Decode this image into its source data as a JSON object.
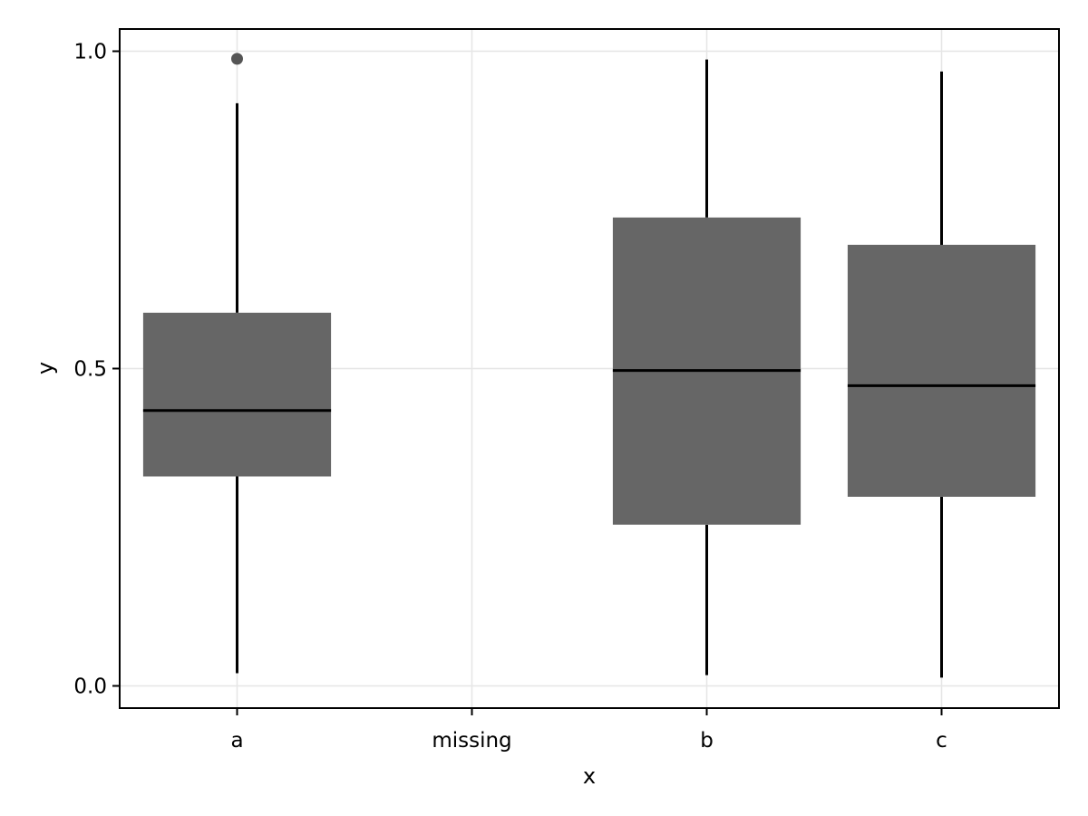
{
  "chart_data": {
    "type": "boxplot",
    "title": "",
    "xlabel": "x",
    "ylabel": "y",
    "categories": [
      "a",
      "missing",
      "b",
      "c"
    ],
    "ylim": [
      -0.035,
      1.035
    ],
    "yticks": [
      0.0,
      0.5,
      1.0
    ],
    "ytick_labels": [
      "0.0",
      "0.5",
      "1.0"
    ],
    "grid": true,
    "legend": "none",
    "box_color": "#666666",
    "median_color": "#000000",
    "whisker_color": "#000000",
    "outlier_color": "#555555",
    "grid_color": "#e6e6e6",
    "boxes": [
      {
        "category": "a",
        "whisker_low": 0.02,
        "q1": 0.33,
        "median": 0.434,
        "q3": 0.588,
        "whisker_high": 0.918,
        "outliers": [
          0.988
        ]
      },
      {
        "category": "missing",
        "empty": true
      },
      {
        "category": "b",
        "whisker_low": 0.017,
        "q1": 0.254,
        "median": 0.497,
        "q3": 0.738,
        "whisker_high": 0.987,
        "outliers": []
      },
      {
        "category": "c",
        "whisker_low": 0.013,
        "q1": 0.298,
        "median": 0.473,
        "q3": 0.695,
        "whisker_high": 0.968,
        "outliers": []
      }
    ]
  }
}
